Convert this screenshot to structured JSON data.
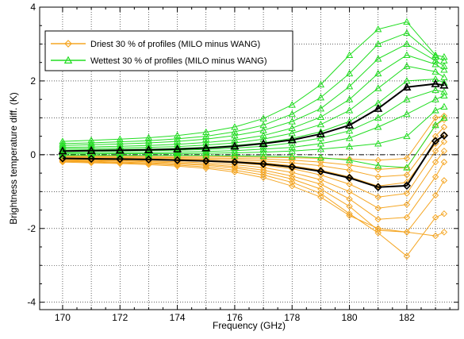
{
  "chart_data": {
    "type": "line",
    "xlabel": "Frequency (GHz)",
    "ylabel": "Brightness temperature diff. (K)",
    "xlim": [
      169.2,
      183.8
    ],
    "ylim": [
      -4.2,
      4.0
    ],
    "x_ticks": [
      170,
      172,
      174,
      176,
      178,
      180,
      182
    ],
    "x_tick_labels": [
      "170",
      "172",
      "174",
      "176",
      "178",
      "180",
      "182"
    ],
    "y_ticks": [
      -4,
      -2,
      0,
      2,
      4
    ],
    "y_tick_labels": [
      "-4",
      "-2",
      "0",
      "2",
      "4"
    ],
    "grid": true,
    "zero_line": true,
    "legend_position": "top-left",
    "x": [
      170,
      171,
      172,
      173,
      174,
      175,
      176,
      177,
      178,
      179,
      180,
      181,
      182,
      183,
      183.3
    ],
    "legend": [
      {
        "label": "Driest 30 % of profiles (MILO minus WANG)",
        "color": "#f5a623",
        "marker": "diamond"
      },
      {
        "label": "Wettest 30 % of profiles (MILO minus WANG)",
        "color": "#22dd22",
        "marker": "triangle"
      }
    ],
    "series": [
      {
        "name": "Driest 30 % of profiles (MILO minus WANG)",
        "role": "mean",
        "color": "#000000",
        "marker": "diamond",
        "values": [
          -0.1,
          -0.11,
          -0.12,
          -0.13,
          -0.15,
          -0.17,
          -0.2,
          -0.25,
          -0.33,
          -0.45,
          -0.63,
          -0.88,
          -0.84,
          0.37,
          0.52
        ]
      },
      {
        "name": "Wettest 30 % of profiles (MILO minus WANG)",
        "role": "mean",
        "color": "#000000",
        "marker": "triangle",
        "values": [
          0.1,
          0.11,
          0.12,
          0.13,
          0.15,
          0.18,
          0.23,
          0.3,
          0.4,
          0.56,
          0.8,
          1.25,
          1.83,
          1.92,
          1.88
        ]
      }
    ],
    "profiles": {
      "dry": {
        "color": "#f5a623",
        "marker": "diamond",
        "lines": [
          [
            -0.04,
            -0.04,
            -0.04,
            -0.05,
            -0.05,
            -0.05,
            -0.06,
            -0.07,
            -0.08,
            -0.1,
            -0.12,
            -0.15,
            -0.1,
            1.0,
            1.05
          ],
          [
            -0.06,
            -0.06,
            -0.07,
            -0.07,
            -0.08,
            -0.09,
            -0.1,
            -0.12,
            -0.15,
            -0.2,
            -0.28,
            -0.4,
            -0.35,
            0.8,
            0.95
          ],
          [
            -0.08,
            -0.08,
            -0.09,
            -0.1,
            -0.11,
            -0.12,
            -0.14,
            -0.17,
            -0.22,
            -0.3,
            -0.42,
            -0.6,
            -0.55,
            0.5,
            0.75
          ],
          [
            -0.09,
            -0.1,
            -0.11,
            -0.12,
            -0.13,
            -0.15,
            -0.18,
            -0.22,
            -0.3,
            -0.42,
            -0.6,
            -0.85,
            -0.75,
            0.3,
            0.55
          ],
          [
            -0.11,
            -0.12,
            -0.13,
            -0.14,
            -0.16,
            -0.18,
            -0.22,
            -0.28,
            -0.38,
            -0.55,
            -0.8,
            -1.15,
            -1.05,
            0.1,
            0.35
          ],
          [
            -0.13,
            -0.14,
            -0.15,
            -0.17,
            -0.19,
            -0.22,
            -0.27,
            -0.35,
            -0.48,
            -0.68,
            -1.0,
            -1.45,
            -1.35,
            -0.2,
            0.1
          ],
          [
            -0.15,
            -0.16,
            -0.17,
            -0.19,
            -0.22,
            -0.26,
            -0.32,
            -0.42,
            -0.58,
            -0.8,
            -1.2,
            -1.75,
            -1.7,
            -0.6,
            -0.2
          ],
          [
            -0.17,
            -0.18,
            -0.2,
            -0.22,
            -0.25,
            -0.29,
            -0.36,
            -0.48,
            -0.66,
            -0.93,
            -1.4,
            -2.05,
            -2.1,
            -1.1,
            -0.7
          ],
          [
            -0.18,
            -0.2,
            -0.22,
            -0.24,
            -0.28,
            -0.33,
            -0.42,
            -0.55,
            -0.75,
            -1.05,
            -1.6,
            -2.12,
            -2.75,
            -1.7,
            -1.6
          ],
          [
            -0.2,
            -0.22,
            -0.24,
            -0.27,
            -0.31,
            -0.37,
            -0.47,
            -0.62,
            -0.85,
            -1.15,
            -1.65,
            -2.0,
            -2.1,
            -2.2,
            -2.1
          ]
        ]
      },
      "wet": {
        "color": "#22dd22",
        "marker": "triangle",
        "lines": [
          [
            -0.02,
            -0.02,
            -0.02,
            -0.02,
            -0.02,
            -0.02,
            -0.03,
            -0.04,
            -0.05,
            -0.08,
            -0.15,
            -0.3,
            -0.35,
            0.8,
            1.0
          ],
          [
            0.02,
            0.02,
            0.03,
            0.03,
            0.03,
            0.04,
            0.05,
            0.07,
            0.1,
            0.15,
            0.22,
            0.3,
            0.5,
            1.2,
            1.3
          ],
          [
            0.05,
            0.05,
            0.06,
            0.06,
            0.07,
            0.09,
            0.11,
            0.15,
            0.2,
            0.3,
            0.45,
            0.75,
            1.1,
            1.5,
            1.6
          ],
          [
            0.08,
            0.09,
            0.1,
            0.11,
            0.12,
            0.14,
            0.18,
            0.23,
            0.32,
            0.45,
            0.65,
            1.0,
            1.5,
            1.75,
            1.7
          ],
          [
            0.12,
            0.13,
            0.14,
            0.15,
            0.17,
            0.2,
            0.25,
            0.32,
            0.44,
            0.62,
            0.9,
            1.4,
            2.0,
            2.05,
            1.95
          ],
          [
            0.16,
            0.17,
            0.18,
            0.2,
            0.22,
            0.26,
            0.32,
            0.42,
            0.58,
            0.82,
            1.2,
            1.8,
            2.4,
            2.25,
            2.1
          ],
          [
            0.2,
            0.21,
            0.23,
            0.25,
            0.28,
            0.33,
            0.4,
            0.52,
            0.72,
            1.02,
            1.5,
            2.2,
            2.7,
            2.45,
            2.3
          ],
          [
            0.25,
            0.27,
            0.29,
            0.32,
            0.36,
            0.42,
            0.52,
            0.66,
            0.9,
            1.25,
            1.85,
            2.6,
            3.0,
            2.55,
            2.4
          ],
          [
            0.3,
            0.32,
            0.35,
            0.38,
            0.43,
            0.5,
            0.62,
            0.8,
            1.1,
            1.55,
            2.2,
            3.0,
            3.3,
            2.65,
            2.55
          ],
          [
            0.36,
            0.39,
            0.42,
            0.46,
            0.52,
            0.61,
            0.75,
            0.98,
            1.35,
            1.9,
            2.7,
            3.4,
            3.6,
            2.7,
            2.65
          ]
        ]
      }
    }
  }
}
